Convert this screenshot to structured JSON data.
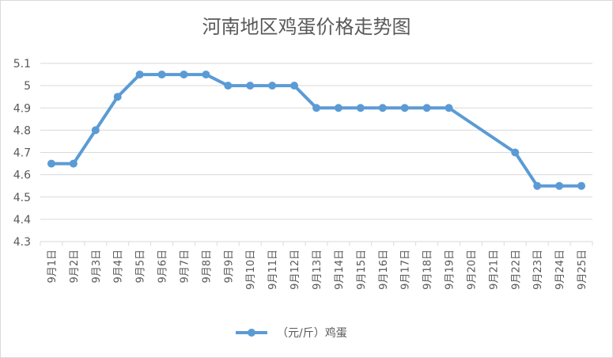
{
  "chart_data": {
    "type": "line",
    "title": "河南地区鸡蛋价格走势图",
    "xlabel": "",
    "ylabel": "",
    "ylim": [
      4.3,
      5.1
    ],
    "y_ticks": [
      "4.3",
      "4.4",
      "4.5",
      "4.6",
      "4.7",
      "4.8",
      "4.9",
      "5",
      "5.1"
    ],
    "grid": true,
    "legend_position": "bottom",
    "categories": [
      "9月1日",
      "9月2日",
      "9月3日",
      "9月4日",
      "9月5日",
      "9月6日",
      "9月7日",
      "9月8日",
      "9月9日",
      "9月10日",
      "9月11日",
      "9月12日",
      "9月13日",
      "9月14日",
      "9月15日",
      "9月16日",
      "9月17日",
      "9月18日",
      "9月19日",
      "9月20日",
      "9月21日",
      "9月22日",
      "9月23日",
      "9月24日",
      "9月25日"
    ],
    "series": [
      {
        "name": "（元/斤）鸡蛋",
        "color": "#5b9bd5",
        "values": [
          4.65,
          4.65,
          4.8,
          4.95,
          5.05,
          5.05,
          5.05,
          5.05,
          5.0,
          5.0,
          5.0,
          5.0,
          4.9,
          4.9,
          4.9,
          4.9,
          4.9,
          4.9,
          4.9,
          null,
          null,
          4.7,
          4.55,
          4.55,
          4.55
        ]
      }
    ]
  }
}
